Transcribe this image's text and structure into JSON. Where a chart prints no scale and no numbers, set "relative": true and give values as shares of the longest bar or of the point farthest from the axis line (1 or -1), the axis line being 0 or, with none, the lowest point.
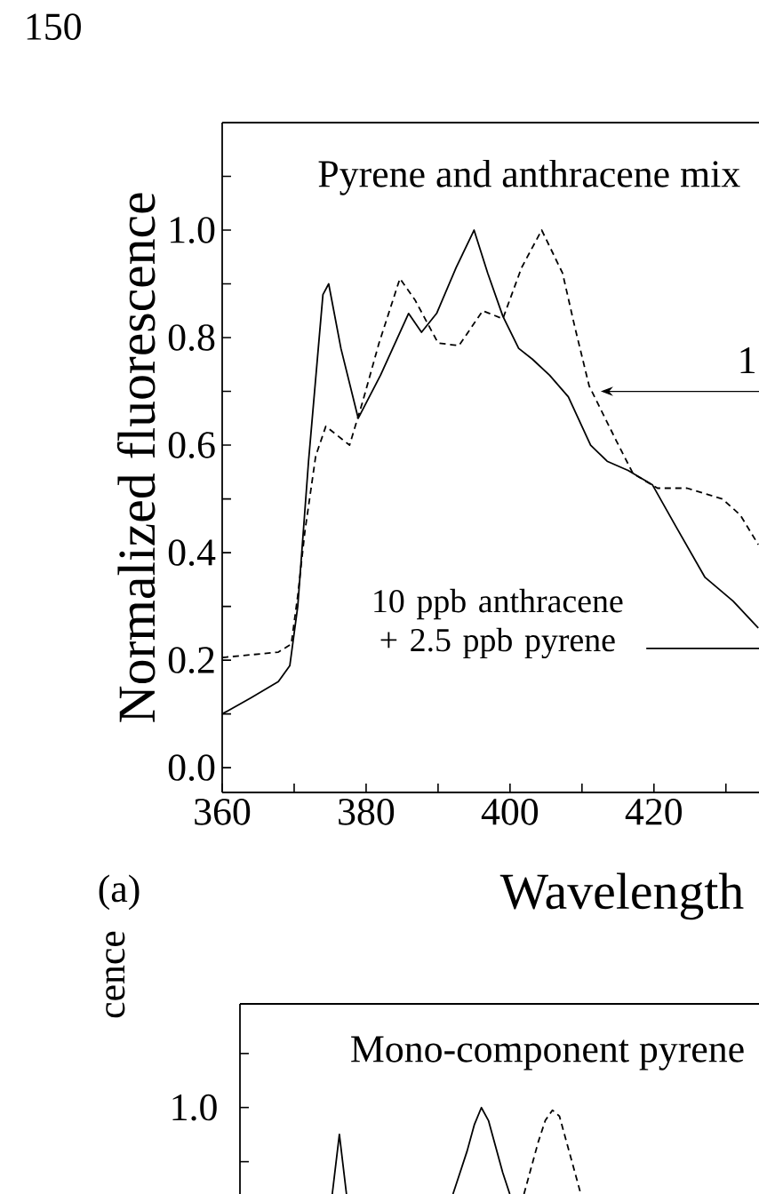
{
  "chart_data": [
    {
      "type": "line",
      "title": "Pyrene and anthracene mix",
      "xlabel": "Wavelength",
      "ylabel": "Normalized fluorescence",
      "xlim": [
        360,
        434.6
      ],
      "ylim": [
        -0.046,
        1.2
      ],
      "xticks": [
        360,
        {
          "value": 370,
          "label": null
        },
        380,
        {
          "value": 390,
          "label": null
        },
        400,
        {
          "value": 410,
          "label": null
        },
        420,
        {
          "value": 430,
          "label": null
        }
      ],
      "yticks": [
        {
          "value": 0,
          "label": "0.0"
        },
        {
          "value": 0.1,
          "label": null
        },
        0.2,
        {
          "value": 0.3,
          "label": null
        },
        0.4,
        {
          "value": 0.5,
          "label": null
        },
        0.6,
        {
          "value": 0.7,
          "label": null
        },
        0.8,
        {
          "value": 0.9,
          "label": null
        },
        {
          "value": 1,
          "label": "1.0"
        },
        {
          "value": 1.1,
          "label": null
        }
      ],
      "legend": "bottom right",
      "series": [
        {
          "name": "10 ppb anthracene + 2.5 ppb pyrene",
          "color": "#000000",
          "line_style": "solid",
          "x": [
            360,
            364,
            367.8,
            369.4,
            370.5,
            372,
            374,
            374.8,
            376.5,
            378.9,
            382,
            385.9,
            387.7,
            389.8,
            392.5,
            395,
            396.9,
            399,
            401.2,
            403.1,
            405.5,
            408.1,
            411.2,
            413.5,
            416.4,
            419.8,
            423,
            427.1,
            431,
            434.5
          ],
          "values": [
            0.1,
            0.13,
            0.16,
            0.19,
            0.3,
            0.57,
            0.88,
            0.9,
            0.78,
            0.65,
            0.73,
            0.845,
            0.81,
            0.845,
            0.93,
            1.0,
            0.92,
            0.84,
            0.78,
            0.76,
            0.73,
            0.69,
            0.6,
            0.57,
            0.553,
            0.526,
            0.45,
            0.354,
            0.31,
            0.26
          ]
        },
        {
          "color": "#000000",
          "line_style": "dashed",
          "x": [
            360,
            364,
            367.8,
            369.6,
            370.5,
            371.5,
            373,
            374.4,
            377.7,
            379.5,
            381.8,
            384.7,
            386.8,
            390,
            392.9,
            396.2,
            399,
            401.6,
            404.4,
            407.3,
            409,
            411,
            414.7,
            417.1,
            420.5,
            424.6,
            429.5,
            432,
            434.5
          ],
          "values": [
            0.205,
            0.21,
            0.215,
            0.23,
            0.32,
            0.44,
            0.58,
            0.635,
            0.6,
            0.68,
            0.79,
            0.91,
            0.87,
            0.79,
            0.785,
            0.85,
            0.835,
            0.93,
            1.0,
            0.92,
            0.82,
            0.71,
            0.61,
            0.547,
            0.52,
            0.52,
            0.5,
            0.47,
            0.415
          ]
        }
      ],
      "annotations": [
        "150",
        "(a)",
        {
          "text": "1",
          "x": 412.6,
          "y": 0.7
        }
      ]
    },
    {
      "type": "line",
      "title": "Mono-component pyrene",
      "ylabel": "cence",
      "relative": true,
      "categories": [
        null,
        null,
        null,
        null,
        null,
        null,
        null,
        null,
        null,
        null,
        null,
        null,
        null,
        null,
        null,
        null,
        null,
        null,
        null,
        null,
        null,
        null,
        null,
        null,
        null,
        null,
        null,
        null,
        null,
        null,
        null,
        null,
        null,
        null,
        null,
        null,
        null,
        null,
        null,
        null,
        null,
        null,
        null,
        null,
        null,
        null,
        null,
        null,
        null,
        null,
        null,
        null,
        null,
        null,
        null,
        null,
        null,
        null,
        null,
        null,
        null,
        null,
        null,
        null,
        null,
        null,
        null,
        null,
        null,
        null,
        null,
        null,
        null,
        null
      ],
      "series": [
        {
          "color": "#000000",
          "line_style": "solid",
          "values": [
            null,
            null,
            null,
            null,
            null,
            null,
            null,
            null,
            null,
            null,
            null,
            null,
            null,
            0,
            0.69,
            0,
            null,
            null,
            null,
            null,
            null,
            null,
            null,
            null,
            null,
            null,
            null,
            null,
            null,
            null,
            0,
            0.25,
            0.5,
            0.8,
            1,
            0.85,
            0.55,
            0.25,
            0,
            null,
            null,
            null,
            null,
            null,
            null,
            null,
            null,
            null,
            null,
            null,
            null,
            null,
            null,
            null,
            null,
            null,
            null,
            null,
            null,
            null,
            null,
            null,
            null,
            null,
            null,
            null,
            null,
            null,
            null,
            null,
            null,
            null,
            null,
            null
          ]
        },
        {
          "color": "#000000",
          "line_style": "dashed",
          "values": [
            null,
            null,
            null,
            null,
            null,
            null,
            null,
            null,
            null,
            null,
            null,
            null,
            null,
            null,
            null,
            null,
            null,
            null,
            null,
            null,
            null,
            null,
            null,
            null,
            null,
            null,
            null,
            null,
            null,
            null,
            null,
            null,
            null,
            null,
            null,
            null,
            null,
            null,
            null,
            null,
            0,
            0.3,
            0.6,
            0.85,
            0.97,
            0.9,
            0.6,
            0.3,
            0,
            null,
            null,
            null,
            null,
            null,
            null,
            null,
            null,
            null,
            null,
            null,
            null,
            null,
            null,
            null,
            null,
            null,
            null,
            null,
            null,
            null,
            null,
            null,
            null,
            null
          ]
        }
      ],
      "annotations": [
        "1.0"
      ]
    }
  ]
}
